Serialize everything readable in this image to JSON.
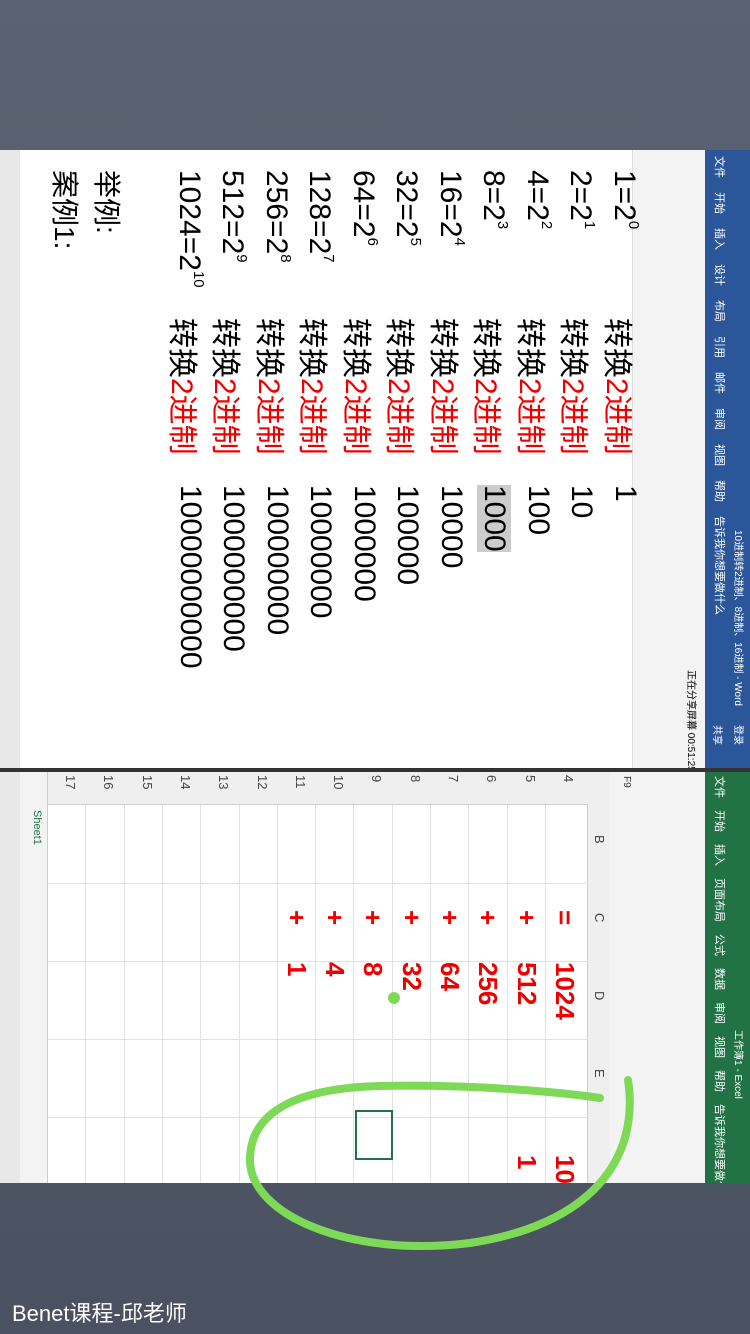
{
  "watermark": "Benet课程-邱老师",
  "word": {
    "title": "10进制转2进制、8进制、16进制 - Word",
    "tabs": [
      "文件",
      "开始",
      "插入",
      "设计",
      "布局",
      "引用",
      "邮件",
      "审阅",
      "视图",
      "帮助",
      "告诉我你想要做什么"
    ],
    "login": "登录",
    "share": "共享",
    "sharing": "正在分享屏幕 00:51:25",
    "lines": [
      {
        "lhs": "1=2",
        "exp": "0",
        "convert": "转换",
        "red": "2进制",
        "result": "1"
      },
      {
        "lhs": "2=2",
        "exp": "1",
        "convert": "转换",
        "red": "2进制",
        "result": "10"
      },
      {
        "lhs": "4=2",
        "exp": "2",
        "convert": "转换",
        "red": "2进制",
        "result": "100"
      },
      {
        "lhs": "8=2",
        "exp": "3",
        "convert": "转换",
        "red": "2进制",
        "result": "1000"
      },
      {
        "lhs": "16=2",
        "exp": "4",
        "convert": "转换",
        "red": "2进制",
        "result": "10000"
      },
      {
        "lhs": "32=2",
        "exp": "5",
        "convert": "转换",
        "red": "2进制",
        "result": "100000"
      },
      {
        "lhs": "64=2",
        "exp": "6",
        "convert": "转换",
        "red": "2进制",
        "result": "1000000"
      },
      {
        "lhs": "128=2",
        "exp": "7",
        "convert": "转换",
        "red": "2进制",
        "result": "10000000"
      },
      {
        "lhs": "256=2",
        "exp": "8",
        "convert": "转换",
        "red": "2进制",
        "result": "100000000"
      },
      {
        "lhs": "512=2",
        "exp": "9",
        "convert": "转换",
        "red": "2进制",
        "result": "1000000000"
      },
      {
        "lhs": "1024=2",
        "exp": "10",
        "convert": "转换",
        "red": "2进制",
        "result": "10000000000"
      }
    ],
    "example": "举例:",
    "case": "案例1:"
  },
  "excel": {
    "title": "工作簿1 - Excel",
    "tabs": [
      "文件",
      "开始",
      "插入",
      "页面布局",
      "公式",
      "数据",
      "审阅",
      "视图",
      "帮助",
      "告诉我你想要做什么"
    ],
    "cell_ref": "F9",
    "columns": [
      "B",
      "C",
      "D",
      "E"
    ],
    "rows": [
      "4",
      "5",
      "6",
      "7",
      "8",
      "9",
      "10",
      "11",
      "12",
      "13",
      "14",
      "15",
      "16",
      "17"
    ],
    "col_c": [
      "=",
      "+",
      "+",
      "+",
      "+",
      "+",
      "+",
      "+"
    ],
    "col_d": [
      "1024",
      "512",
      "256",
      "64",
      "32",
      "8",
      "4",
      "1"
    ],
    "col_f": [
      "10",
      "1"
    ],
    "sheet": "Sheet1"
  }
}
